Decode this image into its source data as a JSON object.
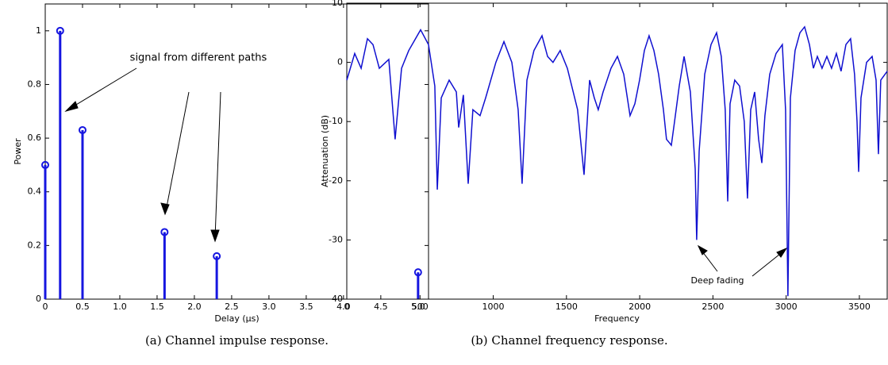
{
  "chart_data": [
    {
      "type": "stem",
      "x_label": "Delay (µs)",
      "y_label": "Power",
      "caption": "(a) Channel impulse response.",
      "annotation": "signal from different paths",
      "x": [
        0,
        0.2,
        0.5,
        1.6,
        2.3,
        5.0
      ],
      "values": [
        0.5,
        1.0,
        0.63,
        0.25,
        0.16,
        0.1
      ],
      "color": "#1616e0",
      "xlim": [
        0,
        5.14
      ],
      "ylim": [
        0,
        1.1
      ],
      "xticks": [
        0,
        0.5,
        {
          "value": 1,
          "label": "1.0"
        },
        1.5,
        {
          "value": 2,
          "label": "2.0"
        },
        2.5,
        {
          "value": 3,
          "label": "3.0"
        },
        3.5,
        {
          "value": 4,
          "label": "4.0"
        },
        4.5,
        {
          "value": 5,
          "label": "5.0"
        }
      ],
      "yticks": [
        0,
        0.2,
        0.4,
        0.6,
        0.8,
        1
      ]
    },
    {
      "type": "line",
      "x_label": "Frequency",
      "y_label": "Attenuation (dB)",
      "caption": "(b) Channel frequency response.",
      "annotation": "Deep fading",
      "x": [
        0,
        54,
        98,
        141,
        179,
        222,
        287,
        330,
        374,
        423,
        504,
        558,
        601,
        618,
        645,
        699,
        748,
        764,
        796,
        829,
        861,
        910,
        948,
        1018,
        1073,
        1127,
        1170,
        1197,
        1230,
        1278,
        1333,
        1371,
        1408,
        1457,
        1506,
        1576,
        1620,
        1658,
        1690,
        1717,
        1750,
        1804,
        1848,
        1891,
        1934,
        1967,
        1999,
        2032,
        2064,
        2097,
        2129,
        2162,
        2183,
        2200,
        2216,
        2238,
        2270,
        2303,
        2346,
        2379,
        2389,
        2406,
        2444,
        2487,
        2525,
        2557,
        2584,
        2601,
        2617,
        2649,
        2682,
        2714,
        2736,
        2758,
        2785,
        2812,
        2834,
        2855,
        2888,
        2931,
        2974,
        2996,
        3012,
        3029,
        3061,
        3094,
        3126,
        3159,
        3186,
        3213,
        3245,
        3278,
        3310,
        3343,
        3375,
        3408,
        3440,
        3467,
        3484,
        3495,
        3511,
        3549,
        3587,
        3614,
        3630,
        3646,
        3690
      ],
      "values": [
        -3,
        1.5,
        -1,
        4,
        3,
        -1,
        0.5,
        -13,
        -1,
        2,
        5.5,
        3,
        -4,
        -21.5,
        -6,
        -3,
        -5,
        -11,
        -5.5,
        -20.5,
        -8,
        -9,
        -6,
        0,
        3.5,
        0,
        -8,
        -20.5,
        -3,
        2,
        4.5,
        1,
        0,
        2,
        -1,
        -8,
        -19,
        -3,
        -6,
        -8,
        -5,
        -1,
        1,
        -2,
        -9,
        -7,
        -3,
        2,
        4.5,
        2,
        -2,
        -8,
        -13,
        -13.5,
        -14,
        -10,
        -4,
        1,
        -5,
        -18,
        -30,
        -15,
        -2,
        3,
        5,
        1,
        -8,
        -23.5,
        -7,
        -3,
        -4,
        -10,
        -23,
        -8,
        -5,
        -13,
        -17,
        -9,
        -2,
        1.5,
        3,
        -8,
        -39.5,
        -6,
        2,
        5,
        6,
        3,
        -1,
        1,
        -1,
        1,
        -1,
        1.5,
        -1.5,
        3,
        4,
        -2,
        -10,
        -18.5,
        -6,
        0,
        1,
        -3,
        -15.5,
        -3,
        -1.5
      ],
      "color": "#1010d0",
      "xlim": [
        0,
        3690
      ],
      "ylim": [
        -40,
        10
      ],
      "xticks": [
        0,
        500,
        1000,
        1500,
        2000,
        2500,
        3000,
        3500
      ],
      "yticks": [
        -40,
        -30,
        -20,
        -10,
        0,
        10
      ]
    }
  ]
}
